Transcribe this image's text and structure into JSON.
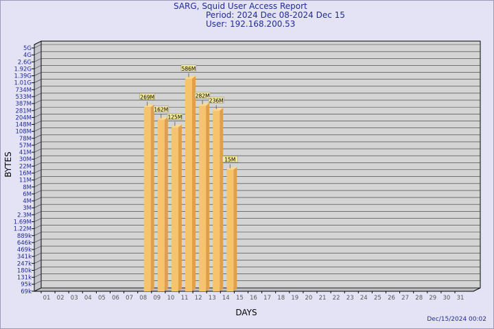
{
  "header": {
    "title": "SARG, Squid User Access Report",
    "period": "Period: 2024 Dec 08-2024 Dec 15",
    "user": "User: 192.168.200.53"
  },
  "footer": {
    "date": "Dec/15/2024 00:02"
  },
  "colors": {
    "background": "#e3e3f5",
    "plot_face": "#d4d4d4",
    "bar": "#f7c46e",
    "bar_side": "#e0a04a",
    "label_bg": "#f4ea9a",
    "title_text": "#1f2a96"
  },
  "chart_data": {
    "type": "bar",
    "xlabel": "DAYS",
    "ylabel": "BYTES",
    "y_scale": "log",
    "y_ticks": [
      "5G",
      "4G",
      "2.6G",
      "1.92G",
      "1.39G",
      "1.01G",
      "734M",
      "533M",
      "387M",
      "281M",
      "204M",
      "148M",
      "108M",
      "78M",
      "57M",
      "41M",
      "30M",
      "22M",
      "16M",
      "11M",
      "8M",
      "6M",
      "4M",
      "3M",
      "2.3M",
      "1.69M",
      "1.22M",
      "889k",
      "646k",
      "469k",
      "341k",
      "247k",
      "180k",
      "131k",
      "95k",
      "69k"
    ],
    "categories": [
      "01",
      "02",
      "03",
      "04",
      "05",
      "06",
      "07",
      "08",
      "09",
      "10",
      "11",
      "12",
      "13",
      "14",
      "15",
      "16",
      "17",
      "18",
      "19",
      "20",
      "21",
      "22",
      "23",
      "24",
      "25",
      "26",
      "27",
      "28",
      "29",
      "30",
      "31"
    ],
    "series": [
      {
        "values": [
          null,
          null,
          null,
          null,
          null,
          null,
          null,
          "269M",
          "162M",
          "125M",
          "586M",
          "282M",
          "236M",
          "15M",
          null,
          null,
          null,
          null,
          null,
          null,
          null,
          null,
          null,
          null,
          null,
          null,
          null,
          null,
          null,
          null,
          null
        ]
      }
    ],
    "bar_levels": [
      0,
      0,
      0,
      0,
      0,
      0,
      0,
      26.5,
      24.7,
      23.6,
      30.6,
      26.7,
      26.0,
      17.5,
      0,
      0,
      0,
      0,
      0,
      0,
      0,
      0,
      0,
      0,
      0,
      0,
      0,
      0,
      0,
      0,
      0
    ]
  }
}
